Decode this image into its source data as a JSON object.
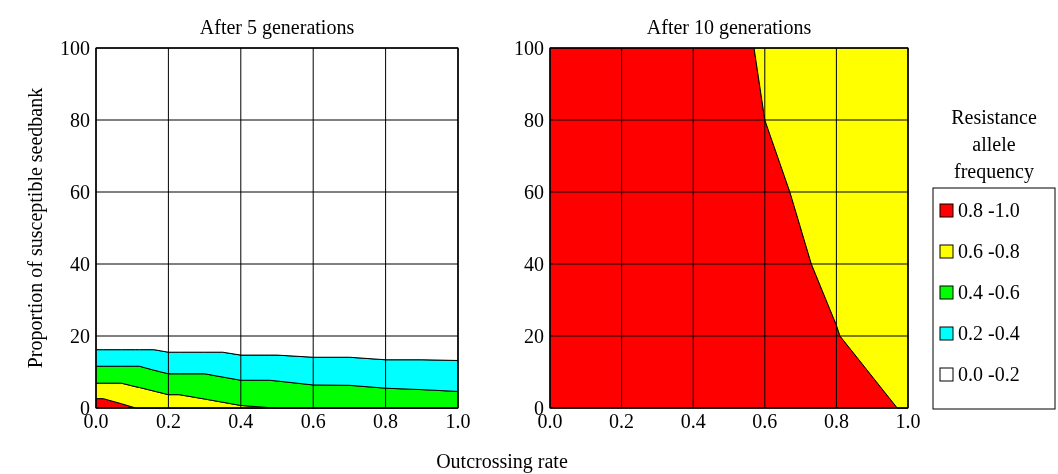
{
  "chart_data": [
    {
      "type": "area",
      "title": "After 5 generations",
      "xlabel": "Outcrossing rate",
      "ylabel": "Proportion of susceptible seedbank",
      "stacked": true,
      "grid": true,
      "legend": "right",
      "legend_title": "Resistance allele frequency",
      "x": [
        0,
        0.02,
        0.07,
        0.11,
        0.12,
        0.16,
        0.2,
        0.23,
        0.3,
        0.35,
        0.4,
        0.48,
        0.5,
        0.6,
        0.7,
        0.8,
        0.9,
        1.0
      ],
      "xlim": [
        0,
        1
      ],
      "ylim": [
        0,
        100
      ],
      "xticks": [
        {
          "value": 0,
          "label": "0.0"
        },
        {
          "value": 0.2,
          "label": "0.2"
        },
        {
          "value": 0.4,
          "label": "0.4"
        },
        {
          "value": 0.6,
          "label": "0.6"
        },
        {
          "value": 0.8,
          "label": "0.8"
        },
        {
          "value": 1,
          "label": "1.0"
        }
      ],
      "yticks": [
        0,
        20,
        40,
        60,
        80,
        100
      ],
      "series": [
        {
          "name": "0.8 -1.0",
          "color": "#ff0000",
          "values": [
            2.6,
            2.6,
            1.2,
            0,
            0,
            0,
            0,
            0,
            0,
            0,
            0,
            0,
            0,
            0,
            0,
            0,
            0,
            0
          ]
        },
        {
          "name": "0.6 -0.8",
          "color": "#ffff00",
          "values": [
            4.3,
            4.3,
            5.7,
            5.9,
            5.7,
            4.7,
            3.7,
            3.7,
            2.5,
            1.6,
            0.7,
            0.1,
            0,
            0,
            0,
            0,
            0,
            0
          ]
        },
        {
          "name": "0.4 -0.6",
          "color": "#00ff00",
          "values": [
            4.7,
            4.7,
            4.7,
            5.7,
            5.9,
            5.8,
            5.8,
            5.8,
            7.0,
            7.0,
            7.0,
            7.6,
            7.5,
            6.4,
            6.3,
            5.5,
            5.1,
            4.6
          ]
        },
        {
          "name": "0.2 -0.4",
          "color": "#00ffff",
          "values": [
            4.6,
            4.6,
            4.6,
            4.6,
            4.6,
            5.7,
            6.0,
            6.0,
            6.0,
            6.9,
            7.0,
            7.0,
            7.2,
            7.7,
            7.8,
            7.9,
            8.3,
            8.6
          ]
        },
        {
          "name": "0.0 -0.2",
          "color": "#ffffff",
          "values": [
            83.8,
            83.8,
            83.8,
            83.8,
            83.8,
            83.8,
            84.5,
            84.5,
            84.5,
            84.5,
            85.3,
            85.3,
            85.3,
            85.9,
            85.9,
            86.6,
            86.6,
            86.8
          ]
        }
      ]
    },
    {
      "type": "area",
      "title": "After 10 generations",
      "stacked": true,
      "grid": true,
      "legend": false,
      "x": [
        0,
        0.57,
        0.6,
        0.67,
        0.73,
        0.8,
        0.81,
        0.97,
        1.0
      ],
      "xlim": [
        0,
        1
      ],
      "ylim": [
        0,
        100
      ],
      "xticks": [
        {
          "value": 0,
          "label": "0.0"
        },
        {
          "value": 0.2,
          "label": "0.2"
        },
        {
          "value": 0.4,
          "label": "0.4"
        },
        {
          "value": 0.6,
          "label": "0.6"
        },
        {
          "value": 0.8,
          "label": "0.8"
        },
        {
          "value": 1,
          "label": "1.0"
        }
      ],
      "yticks": [
        0,
        20,
        40,
        60,
        80,
        100
      ],
      "series": [
        {
          "color": "#ff0000",
          "values": [
            100,
            100,
            80,
            60,
            40,
            23,
            20,
            0,
            0
          ]
        },
        {
          "color": "#ffff00",
          "values": [
            null,
            0,
            20,
            40,
            60,
            77,
            80,
            100,
            100
          ]
        }
      ]
    }
  ]
}
